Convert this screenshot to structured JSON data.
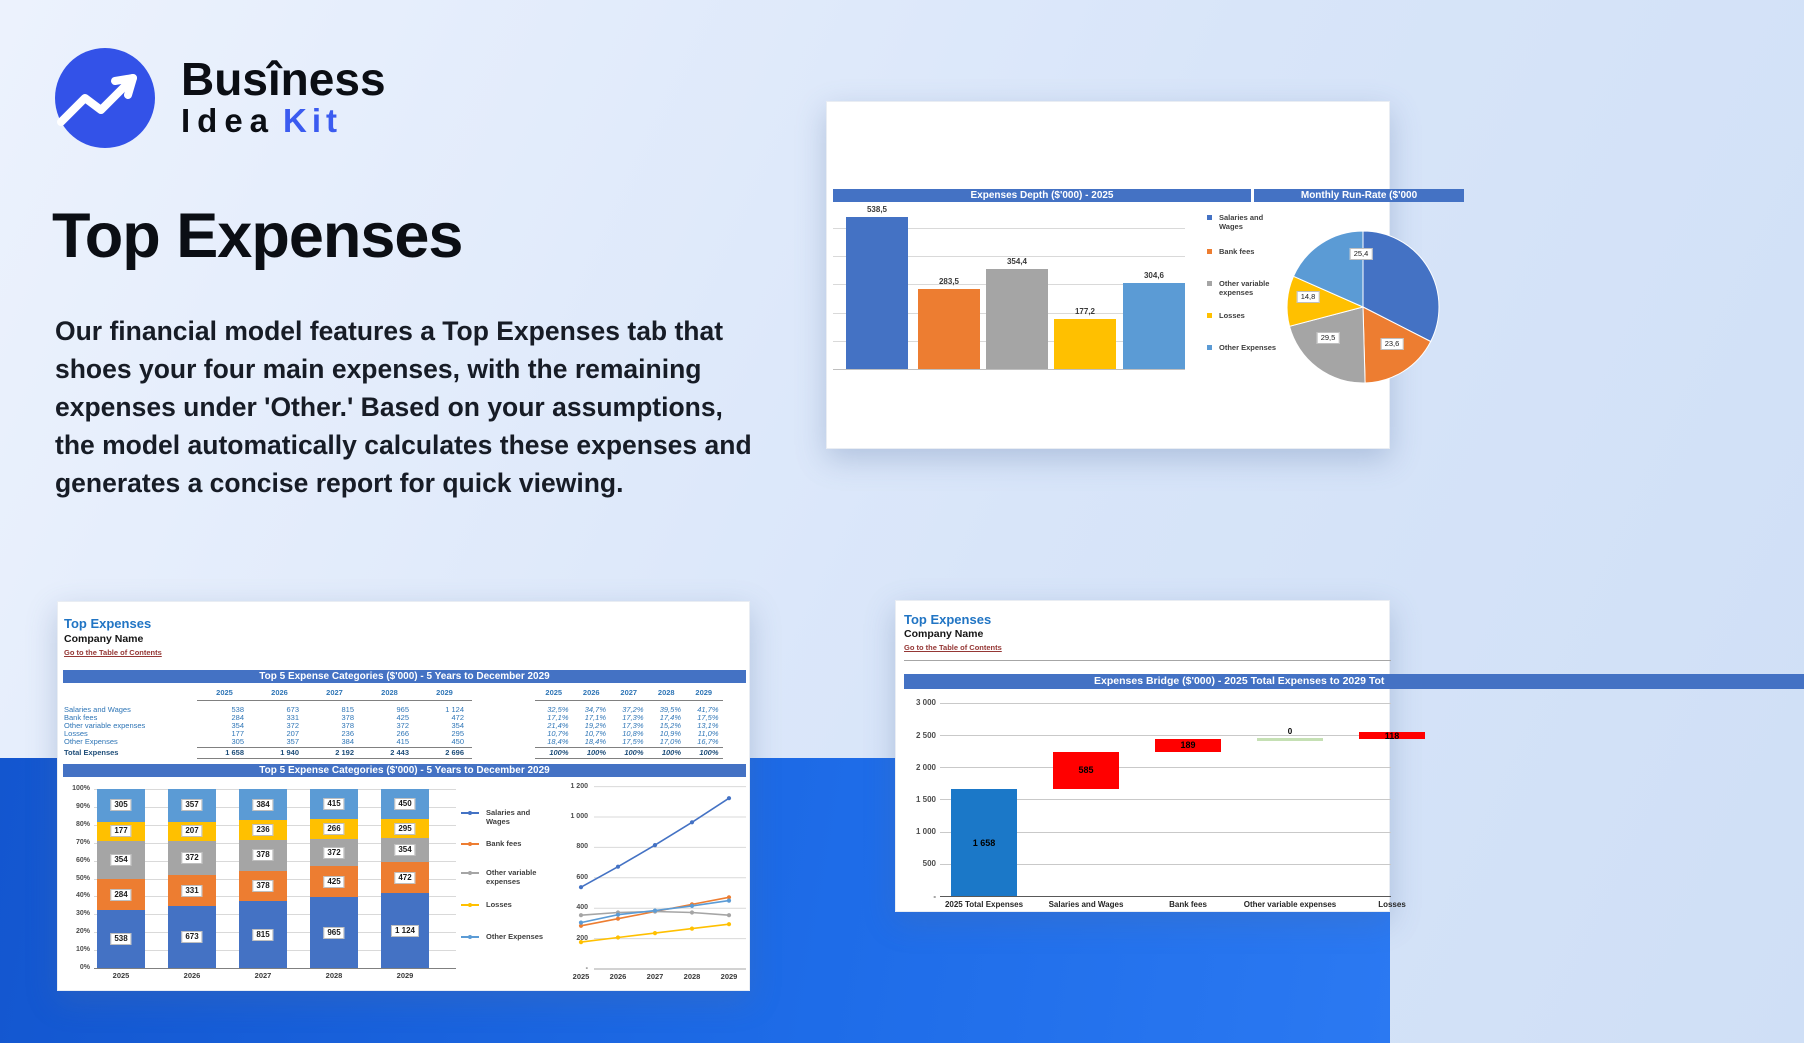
{
  "colors": {
    "brand_blue": "#3352e8",
    "accent_blue": "#3b5bf0",
    "excel_header_blue": "#4472c4",
    "sheet_title_blue": "#2175c4",
    "link_maroon": "#953735",
    "band_gradient": [
      "#1356cf",
      "#2b79f2"
    ]
  },
  "brand": {
    "line1": "Busîness",
    "line2_dark": "Idea",
    "line2_accent": "Kit"
  },
  "hero": {
    "title": "Top Expenses",
    "paragraph": "Our financial model features a Top Expenses tab that shoes your four main expenses, with the remaining expenses under 'Other.' Based on your assumptions, the model automatically calculates these expenses and generates a concise report for quick viewing."
  },
  "series": [
    {
      "name": "Salaries and Wages",
      "color": "#4472c4"
    },
    {
      "name": "Bank fees",
      "color": "#ed7d31"
    },
    {
      "name": "Other variable expenses",
      "color": "#a5a5a5"
    },
    {
      "name": "Losses",
      "color": "#ffc000"
    },
    {
      "name": "Other Expenses",
      "color": "#5b9bd5"
    }
  ],
  "expenses_depth_card": {
    "header_left": "Expenses Depth ($'000) - 2025",
    "header_right": "Monthly Run-Rate ($'000"
  },
  "sheet_top5": {
    "title": "Top Expenses",
    "company": "Company Name",
    "link": "Go to the Table of Contents",
    "table_header": "Top 5 Expense Categories ($'000) - 5 Years to December 2029",
    "chart_header": "Top 5 Expense Categories ($'000) - 5 Years to December 2029",
    "years": [
      "2025",
      "2026",
      "2027",
      "2028",
      "2029"
    ],
    "rows": [
      {
        "label": "Salaries and Wages",
        "values": [
          "538",
          "673",
          "815",
          "965",
          "1 124"
        ],
        "pcts": [
          "32,5%",
          "34,7%",
          "37,2%",
          "39,5%",
          "41,7%"
        ]
      },
      {
        "label": "Bank fees",
        "values": [
          "284",
          "331",
          "378",
          "425",
          "472"
        ],
        "pcts": [
          "17,1%",
          "17,1%",
          "17,3%",
          "17,4%",
          "17,5%"
        ]
      },
      {
        "label": "Other variable expenses",
        "values": [
          "354",
          "372",
          "378",
          "372",
          "354"
        ],
        "pcts": [
          "21,4%",
          "19,2%",
          "17,3%",
          "15,2%",
          "13,1%"
        ]
      },
      {
        "label": "Losses",
        "values": [
          "177",
          "207",
          "236",
          "266",
          "295"
        ],
        "pcts": [
          "10,7%",
          "10,7%",
          "10,8%",
          "10,9%",
          "11,0%"
        ]
      },
      {
        "label": "Other Expenses",
        "values": [
          "305",
          "357",
          "384",
          "415",
          "450"
        ],
        "pcts": [
          "18,4%",
          "18,4%",
          "17,5%",
          "17,0%",
          "16,7%"
        ]
      }
    ],
    "total": {
      "label": "Total Expenses",
      "values": [
        "1 658",
        "1 940",
        "2 192",
        "2 443",
        "2 696"
      ],
      "pcts": [
        "100%",
        "100%",
        "100%",
        "100%",
        "100%"
      ]
    }
  },
  "sheet_bridge": {
    "title": "Top Expenses",
    "company": "Company Name",
    "link": "Go to the Table of Contents",
    "header": "Expenses Bridge ($'000) - 2025 Total Expenses to 2029 Tot"
  },
  "chart_data": [
    {
      "id": "expenses_depth",
      "type": "bar",
      "title": "Expenses Depth ($'000) - 2025",
      "categories": [
        "Salaries and Wages",
        "Bank fees",
        "Other variable expenses",
        "Losses",
        "Other Expenses"
      ],
      "values": [
        538.5,
        283.5,
        354.4,
        177.2,
        304.6
      ],
      "labels": [
        "538,5",
        "283,5",
        "354,4",
        "177,2",
        "304,6"
      ],
      "ylim": [
        0,
        500
      ],
      "grid": true,
      "legend_position": "right"
    },
    {
      "id": "monthly_run_rate",
      "type": "pie",
      "title": "Monthly Run-Rate ($'000",
      "categories": [
        "Salaries and Wages",
        "Bank fees",
        "Other variable expenses",
        "Losses",
        "Other Expenses"
      ],
      "values": [
        44.9,
        23.6,
        29.5,
        14.8,
        25.4
      ],
      "labels": [
        null,
        "23,6",
        "29,5",
        "14,8",
        "25,4"
      ]
    },
    {
      "id": "top5_stacked",
      "type": "bar",
      "subtype": "stacked-100",
      "title": "Top 5 Expense Categories ($'000) - 5 Years to December 2029",
      "categories": [
        "2025",
        "2026",
        "2027",
        "2028",
        "2029"
      ],
      "series": [
        {
          "name": "Salaries and Wages",
          "values": [
            538,
            673,
            815,
            965,
            1124
          ],
          "labels": [
            "538",
            "673",
            "815",
            "965",
            "1 124"
          ]
        },
        {
          "name": "Bank fees",
          "values": [
            284,
            331,
            378,
            425,
            472
          ],
          "labels": [
            "284",
            "331",
            "378",
            "425",
            "472"
          ]
        },
        {
          "name": "Other variable expenses",
          "values": [
            354,
            372,
            378,
            372,
            354
          ],
          "labels": [
            "354",
            "372",
            "378",
            "372",
            "354"
          ]
        },
        {
          "name": "Losses",
          "values": [
            177,
            207,
            236,
            266,
            295
          ],
          "labels": [
            "177",
            "207",
            "236",
            "266",
            "295"
          ]
        },
        {
          "name": "Other Expenses",
          "values": [
            305,
            357,
            384,
            415,
            450
          ],
          "labels": [
            "305",
            "357",
            "384",
            "415",
            "450"
          ]
        }
      ],
      "y_ticks": [
        "0%",
        "10%",
        "20%",
        "30%",
        "40%",
        "50%",
        "60%",
        "70%",
        "80%",
        "90%",
        "100%"
      ]
    },
    {
      "id": "top5_lines",
      "type": "line",
      "categories": [
        "2025",
        "2026",
        "2027",
        "2028",
        "2029"
      ],
      "series_from": "top5_stacked",
      "y_ticks": [
        "1 200",
        "1 000",
        "800",
        "600",
        "400",
        "200",
        "-"
      ],
      "ylim": [
        0,
        1200
      ],
      "legend_position": "left"
    },
    {
      "id": "expenses_bridge",
      "type": "waterfall",
      "title": "Expenses Bridge ($'000) - 2025 Total Expenses to 2029 Tot",
      "categories": [
        "2025 Total Expenses",
        "Salaries and Wages",
        "Bank fees",
        "Other variable expenses",
        "Losses"
      ],
      "values": [
        1658,
        585,
        189,
        0,
        118
      ],
      "labels": [
        "1 658",
        "585",
        "189",
        "0",
        "118"
      ],
      "bar_types": [
        "total",
        "increase",
        "increase",
        "zero",
        "increase"
      ],
      "bar_colors": {
        "total": "#1b78c8",
        "increase": "#ff0000",
        "zero": "#c5e0b4"
      },
      "y_ticks": [
        "3 000",
        "2 500",
        "2 000",
        "1 500",
        "1 000",
        "500",
        "-"
      ],
      "ylim": [
        0,
        3000
      ]
    }
  ]
}
